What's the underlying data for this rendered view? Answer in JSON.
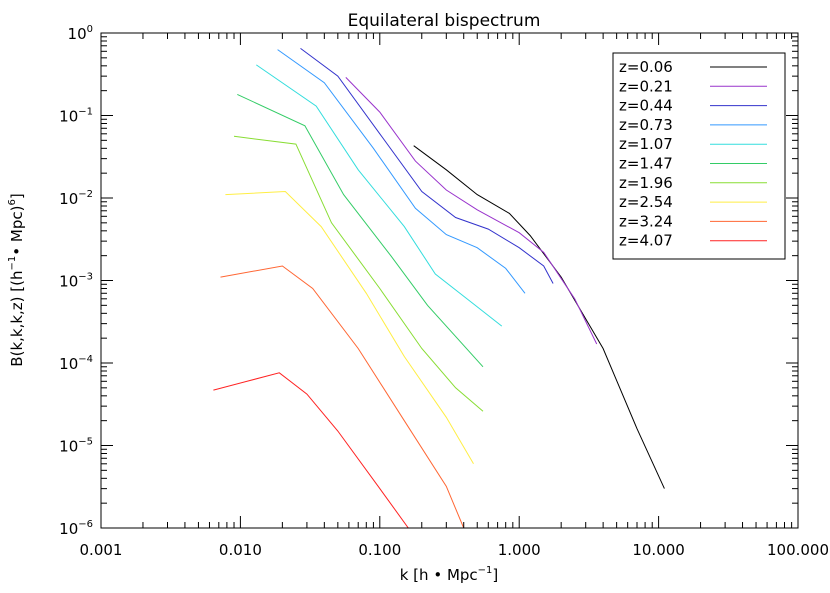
{
  "chart_data": {
    "type": "line",
    "title": "Equilateral bispectrum",
    "xlabel": {
      "pre": "k [h ",
      "dot": "•",
      "mid": " Mpc",
      "sup": "−1",
      "post": "]"
    },
    "ylabel": {
      "pre": "B(k,k,k,z) [(h",
      "sup1": "−1",
      "dot": "•",
      "mid": " Mpc)",
      "sup2": "6",
      "post": "]"
    },
    "x_scale": "log",
    "y_scale": "log",
    "xlim": [
      0.001,
      100
    ],
    "ylim": [
      1e-06,
      1
    ],
    "x_tick_values": [
      0.001,
      0.01,
      0.1,
      1,
      10,
      100
    ],
    "x_tick_labels": [
      "0.001",
      "0.010",
      "0.100",
      "1.000",
      "10.000",
      "100.000"
    ],
    "y_tick_values": [
      1e-06,
      1e-05,
      0.0001,
      0.001,
      0.01,
      0.1,
      1
    ],
    "y_tick_labels": [
      [
        "10",
        "−6"
      ],
      [
        "10",
        "−5"
      ],
      [
        "10",
        "−4"
      ],
      [
        "10",
        "−3"
      ],
      [
        "10",
        "−2"
      ],
      [
        "10",
        "−1"
      ],
      [
        "10",
        "0"
      ]
    ],
    "grid": false,
    "legend_position": "top-right",
    "series": [
      {
        "name": "z=0.06",
        "color": "#000000",
        "points": [
          [
            0.175,
            0.043
          ],
          [
            0.3,
            0.022
          ],
          [
            0.5,
            0.011
          ],
          [
            0.85,
            0.0065
          ],
          [
            1.2,
            0.0035
          ],
          [
            2,
            0.0011
          ],
          [
            4,
            0.00015
          ],
          [
            7,
            1.6e-05
          ],
          [
            11,
            3e-06
          ]
        ]
      },
      {
        "name": "z=0.21",
        "color": "#9933cc",
        "points": [
          [
            0.057,
            0.29
          ],
          [
            0.1,
            0.11
          ],
          [
            0.18,
            0.028
          ],
          [
            0.3,
            0.0125
          ],
          [
            0.5,
            0.0072
          ],
          [
            1,
            0.0038
          ],
          [
            1.5,
            0.0022
          ],
          [
            2.5,
            0.0006
          ],
          [
            3.6,
            0.00017
          ]
        ]
      },
      {
        "name": "z=0.44",
        "color": "#3333cc",
        "points": [
          [
            0.027,
            0.65
          ],
          [
            0.05,
            0.3
          ],
          [
            0.1,
            0.06
          ],
          [
            0.2,
            0.012
          ],
          [
            0.35,
            0.0058
          ],
          [
            0.6,
            0.0042
          ],
          [
            1,
            0.0025
          ],
          [
            1.5,
            0.0015
          ],
          [
            1.75,
            0.00092
          ]
        ]
      },
      {
        "name": "z=0.73",
        "color": "#3399ff",
        "points": [
          [
            0.0185,
            0.63
          ],
          [
            0.04,
            0.25
          ],
          [
            0.09,
            0.04
          ],
          [
            0.18,
            0.0075
          ],
          [
            0.3,
            0.0036
          ],
          [
            0.5,
            0.0025
          ],
          [
            0.8,
            0.0014
          ],
          [
            1.1,
            0.0007
          ]
        ]
      },
      {
        "name": "z=1.07",
        "color": "#33dddd",
        "points": [
          [
            0.013,
            0.41
          ],
          [
            0.035,
            0.13
          ],
          [
            0.07,
            0.022
          ],
          [
            0.15,
            0.0045
          ],
          [
            0.25,
            0.0012
          ],
          [
            0.45,
            0.00055
          ],
          [
            0.75,
            0.00028
          ]
        ]
      },
      {
        "name": "z=1.47",
        "color": "#33cc66",
        "points": [
          [
            0.0095,
            0.18
          ],
          [
            0.029,
            0.075
          ],
          [
            0.055,
            0.011
          ],
          [
            0.12,
            0.002
          ],
          [
            0.22,
            0.0005
          ],
          [
            0.35,
            0.00021
          ],
          [
            0.55,
            9e-05
          ]
        ]
      },
      {
        "name": "z=1.96",
        "color": "#88dd33",
        "points": [
          [
            0.009,
            0.056
          ],
          [
            0.025,
            0.045
          ],
          [
            0.045,
            0.005
          ],
          [
            0.1,
            0.0008
          ],
          [
            0.2,
            0.00015
          ],
          [
            0.35,
            5e-05
          ],
          [
            0.55,
            2.6e-05
          ]
        ]
      },
      {
        "name": "z=2.54",
        "color": "#ffee44",
        "points": [
          [
            0.0078,
            0.011
          ],
          [
            0.021,
            0.012
          ],
          [
            0.038,
            0.0045
          ],
          [
            0.08,
            0.0007
          ],
          [
            0.15,
            0.00012
          ],
          [
            0.3,
            2.2e-05
          ],
          [
            0.47,
            6e-06
          ]
        ]
      },
      {
        "name": "z=3.24",
        "color": "#ff6633",
        "points": [
          [
            0.0072,
            0.0011
          ],
          [
            0.02,
            0.0015
          ],
          [
            0.033,
            0.0008
          ],
          [
            0.07,
            0.00015
          ],
          [
            0.15,
            2e-05
          ],
          [
            0.3,
            3.2e-06
          ],
          [
            0.4,
            1e-06
          ]
        ]
      },
      {
        "name": "z=4.07",
        "color": "#ff2222",
        "points": [
          [
            0.0064,
            4.7e-05
          ],
          [
            0.019,
            7.6e-05
          ],
          [
            0.03,
            4.2e-05
          ],
          [
            0.05,
            1.5e-05
          ],
          [
            0.1,
            3e-06
          ],
          [
            0.16,
            1e-06
          ]
        ]
      }
    ]
  }
}
